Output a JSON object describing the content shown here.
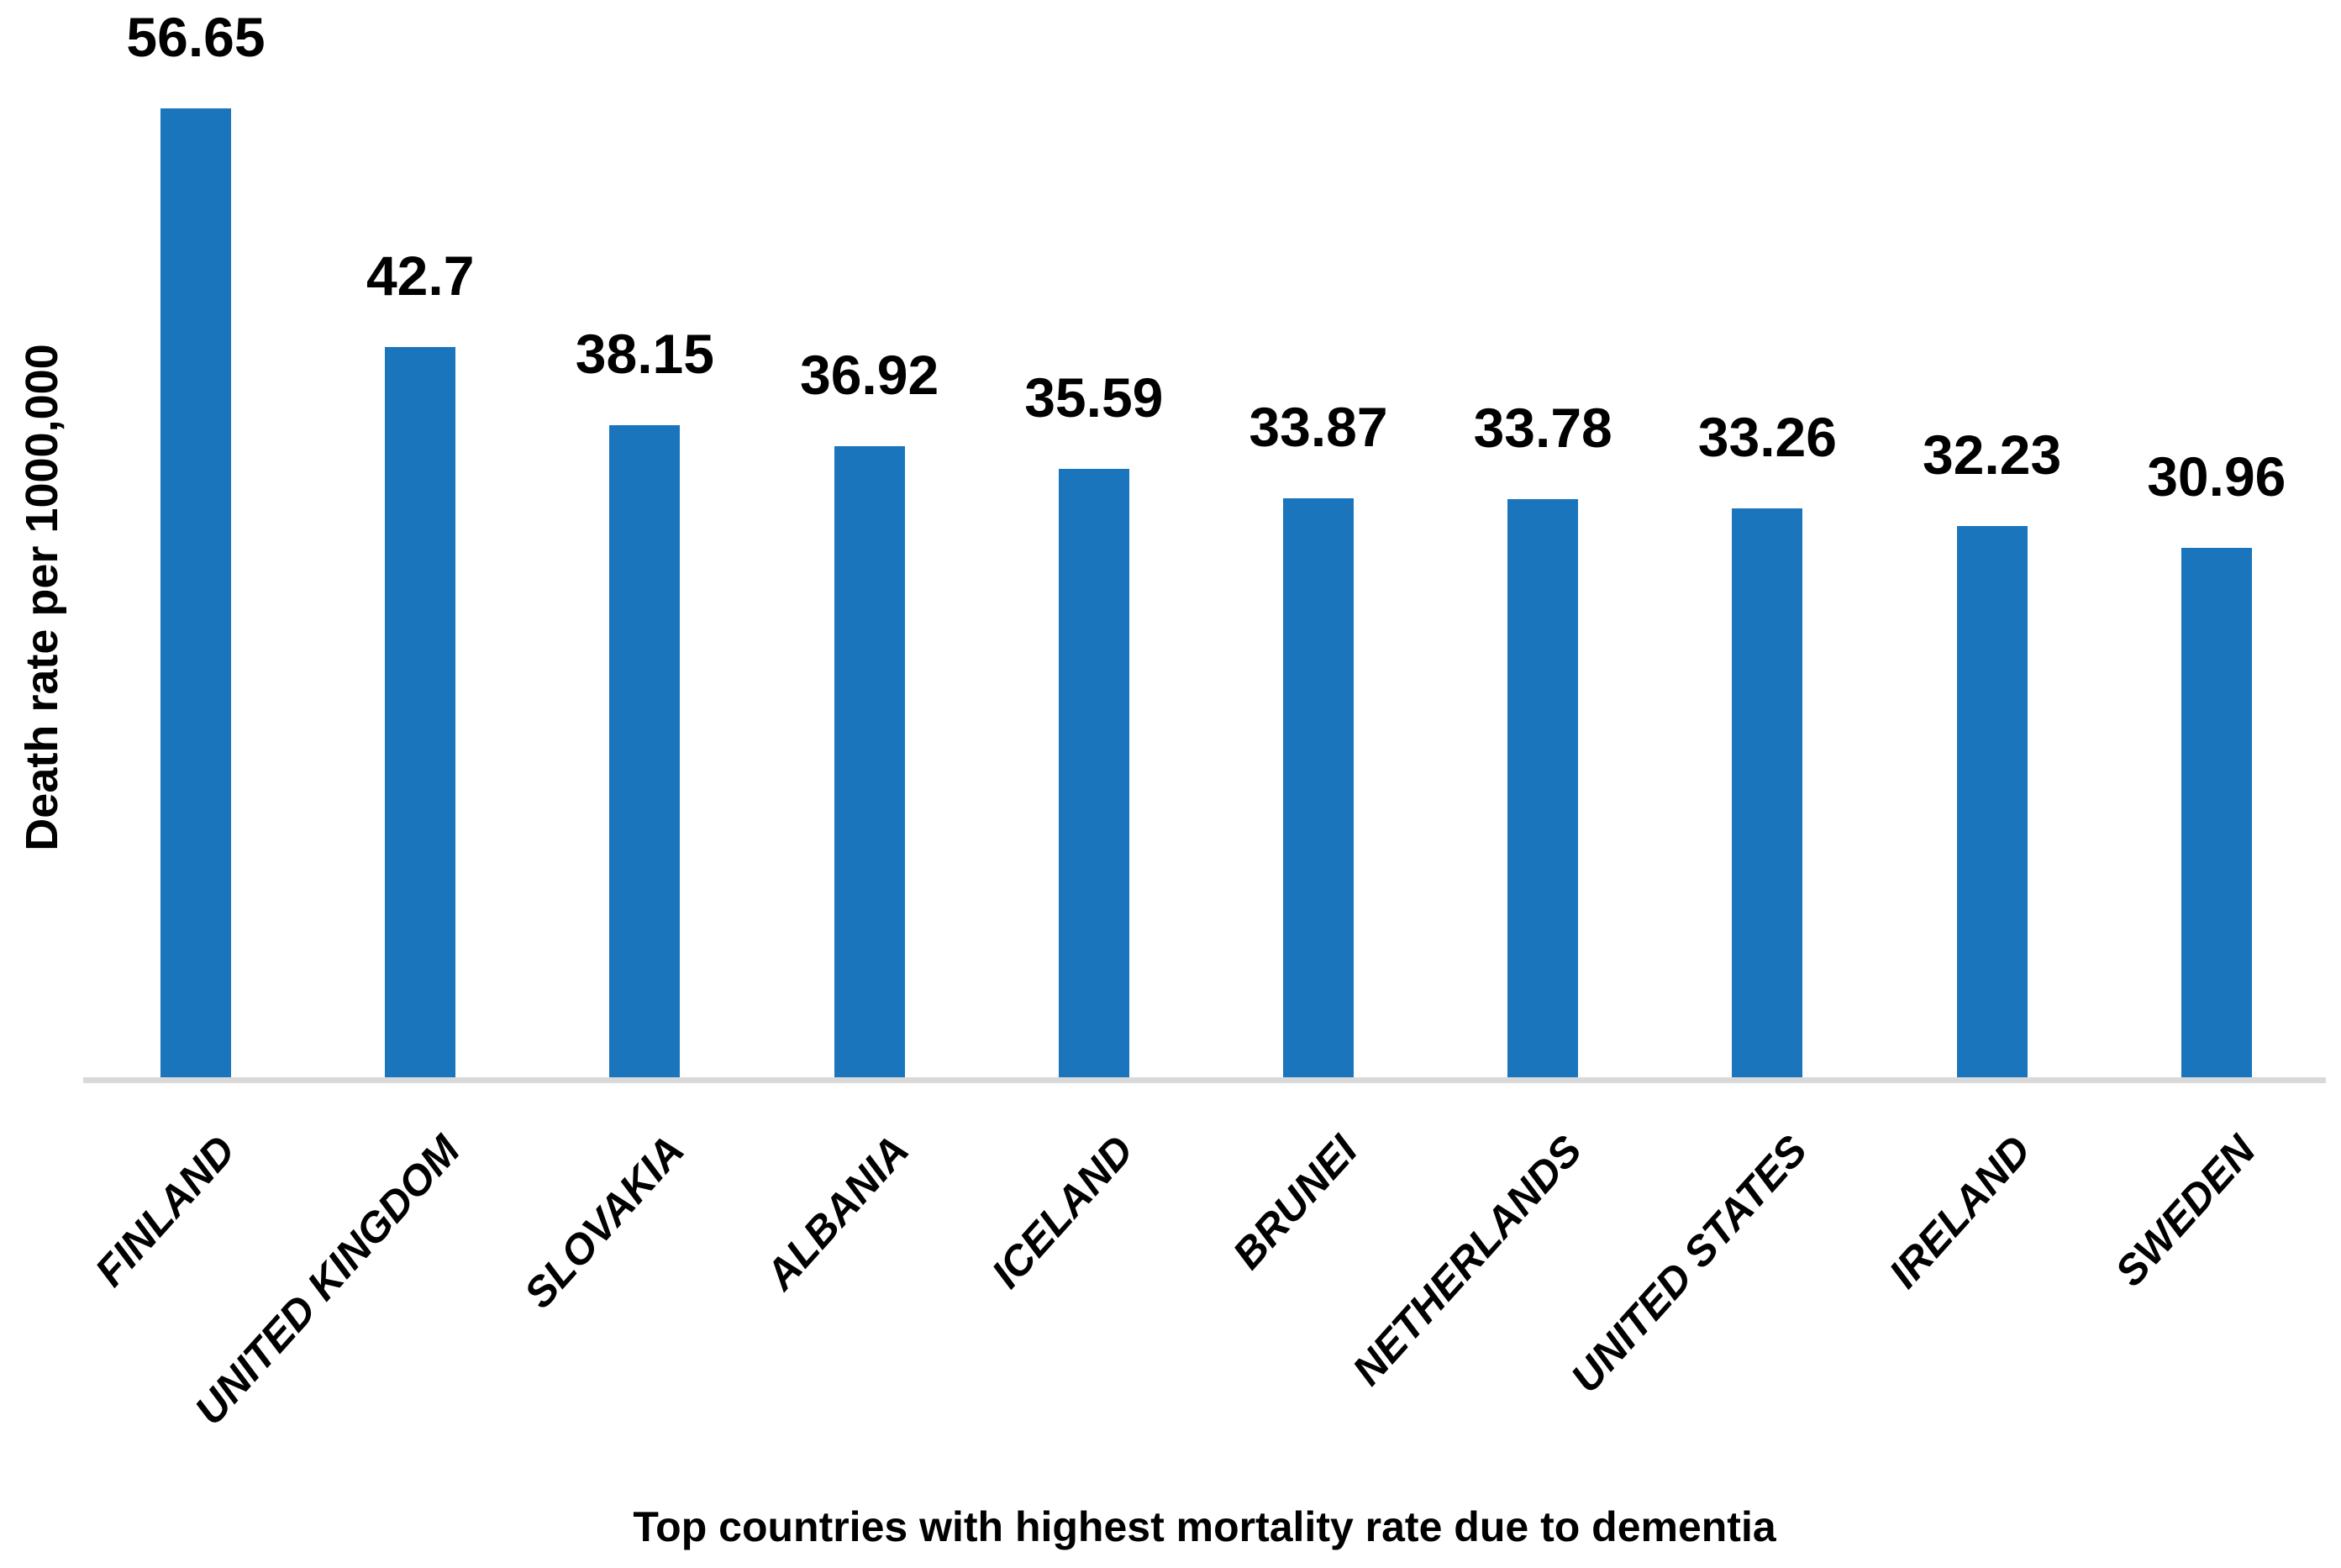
{
  "chart_data": {
    "type": "bar",
    "title": "",
    "xlabel": "Top countries with highest mortality rate due to dementia",
    "ylabel": "Death rate per 1000,000",
    "categories": [
      "FINLAND",
      "UNITED KINGDOM",
      "SLOVAKIA",
      "ALBANIA",
      "ICELAND",
      "BRUNEI",
      "NETHERLANDS",
      "UNITED STATES",
      "IRELAND",
      "SWEDEN"
    ],
    "values": [
      56.65,
      42.7,
      38.15,
      36.92,
      35.59,
      33.87,
      33.78,
      33.26,
      32.23,
      30.96
    ],
    "value_labels": [
      "56.65",
      "42.7",
      "38.15",
      "36.92",
      "35.59",
      "33.87",
      "33.78",
      "33.26",
      "32.23",
      "30.96"
    ],
    "ylim": [
      0,
      60
    ],
    "grid": false,
    "legend": false,
    "colors": {
      "bar": "#1B75BC",
      "axis_line": "#D9D9D9",
      "text": "#000000",
      "background": "#FFFFFF"
    }
  }
}
